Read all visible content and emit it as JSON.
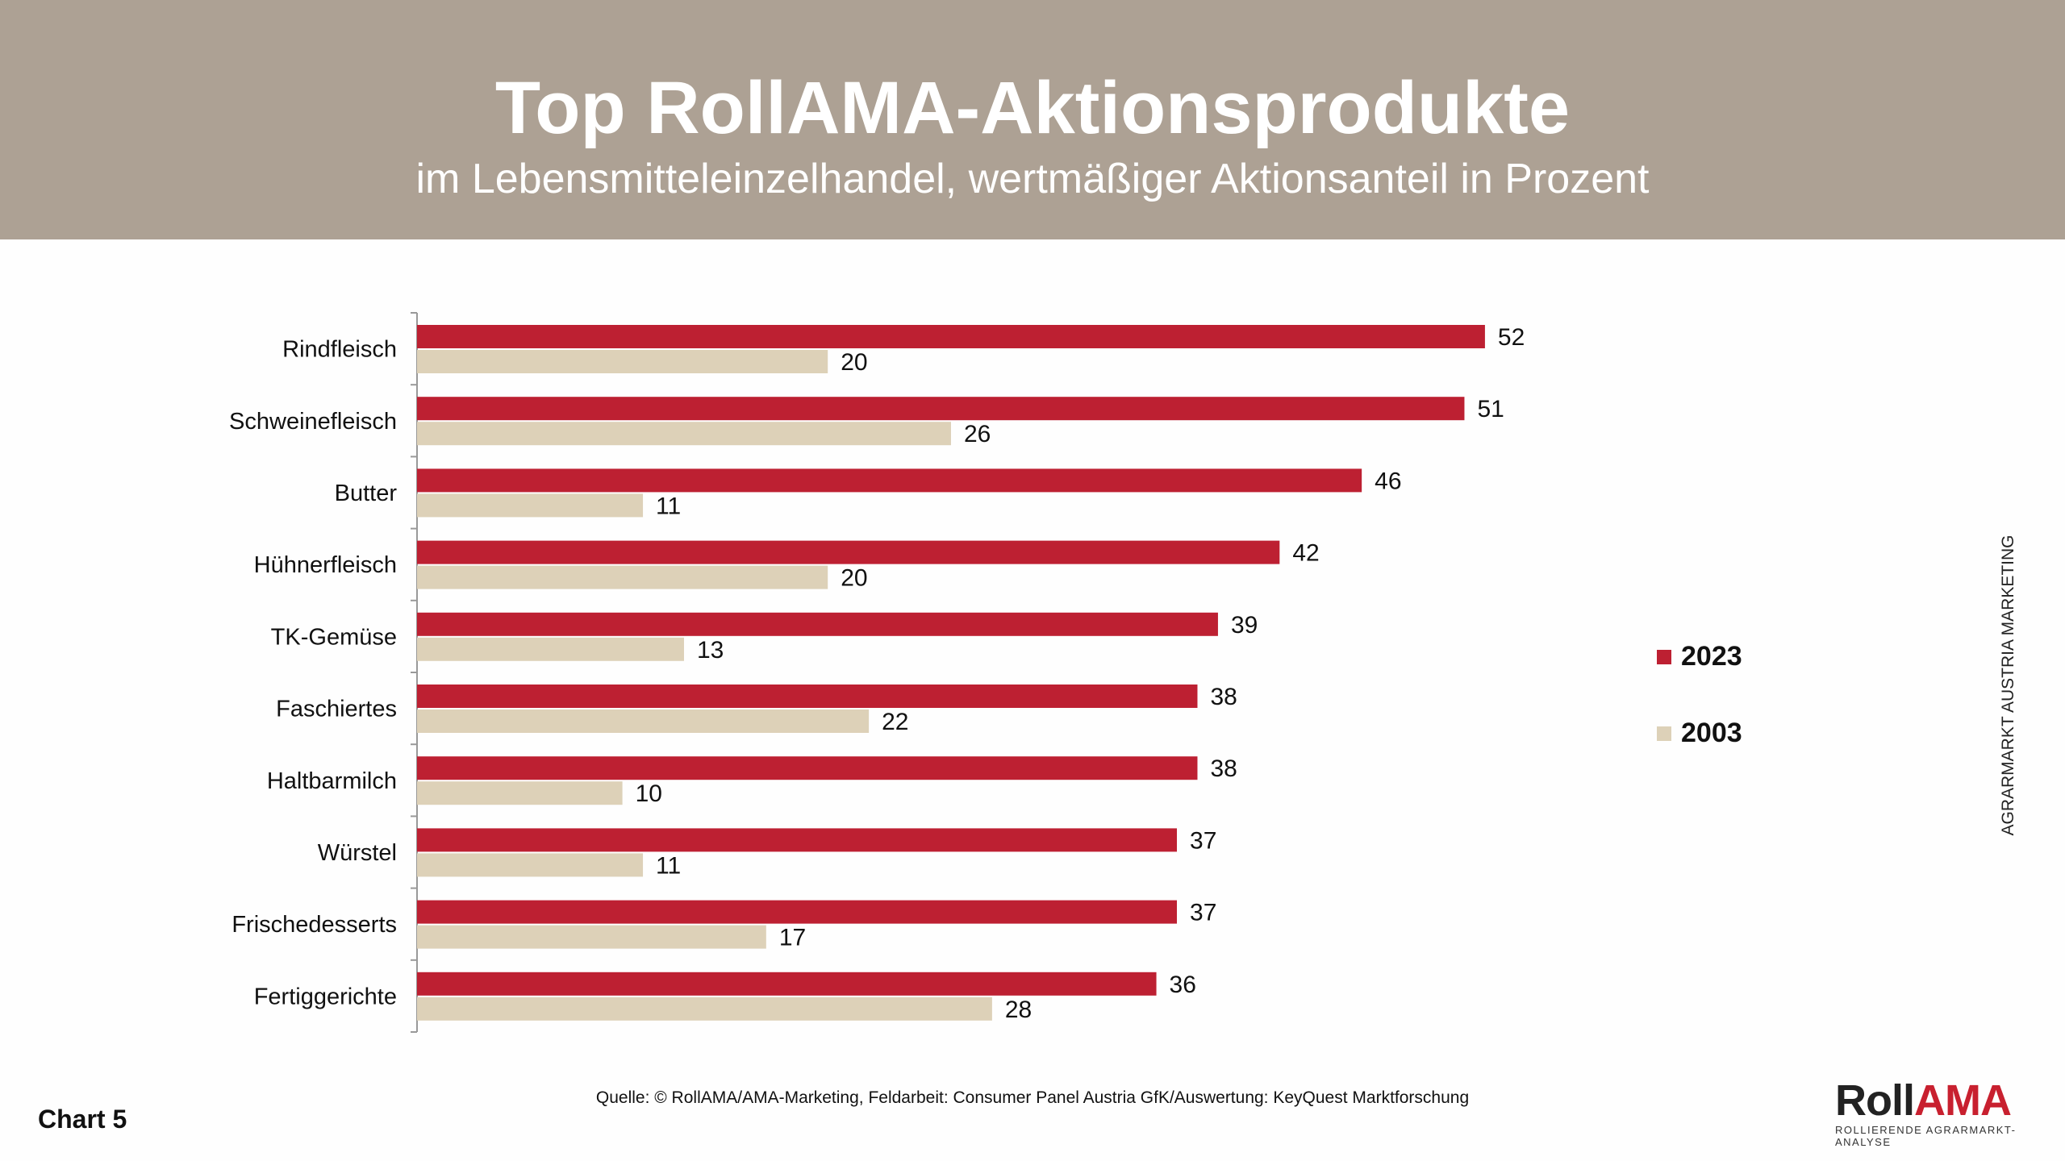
{
  "header": {
    "title": "Top RollAMA-Aktionsprodukte",
    "subtitle": "im Lebensmitteleinzelhandel, wertmäßiger Aktionsanteil in Prozent"
  },
  "chart_data": {
    "type": "bar",
    "orientation": "horizontal",
    "categories": [
      "Rindfleisch",
      "Schweinefleisch",
      "Butter",
      "Hühnerfleisch",
      "TK-Gemüse",
      "Faschiertes",
      "Haltbarmilch",
      "Würstel",
      "Frischedesserts",
      "Fertiggerichte"
    ],
    "series": [
      {
        "name": "2023",
        "color": "#bd2032",
        "values": [
          52,
          51,
          46,
          42,
          39,
          38,
          38,
          37,
          37,
          36
        ]
      },
      {
        "name": "2003",
        "color": "#ddd1b8",
        "values": [
          20,
          26,
          11,
          20,
          13,
          22,
          10,
          11,
          17,
          28
        ]
      }
    ],
    "xlim": [
      0,
      100
    ],
    "grid": false,
    "legend_position": "right",
    "data_labels": true
  },
  "side_text": "AGRARMARKT AUSTRIA MARKETING",
  "source": "Quelle: © RollAMA/AMA-Marketing, Feldarbeit: Consumer Panel Austria GfK/Auswertung: KeyQuest Marktforschung",
  "chart_number": "Chart 5",
  "logo": {
    "part1": "Roll",
    "part2": "AMA",
    "tagline": "ROLLIERENDE AGRARMARKT-ANALYSE"
  }
}
